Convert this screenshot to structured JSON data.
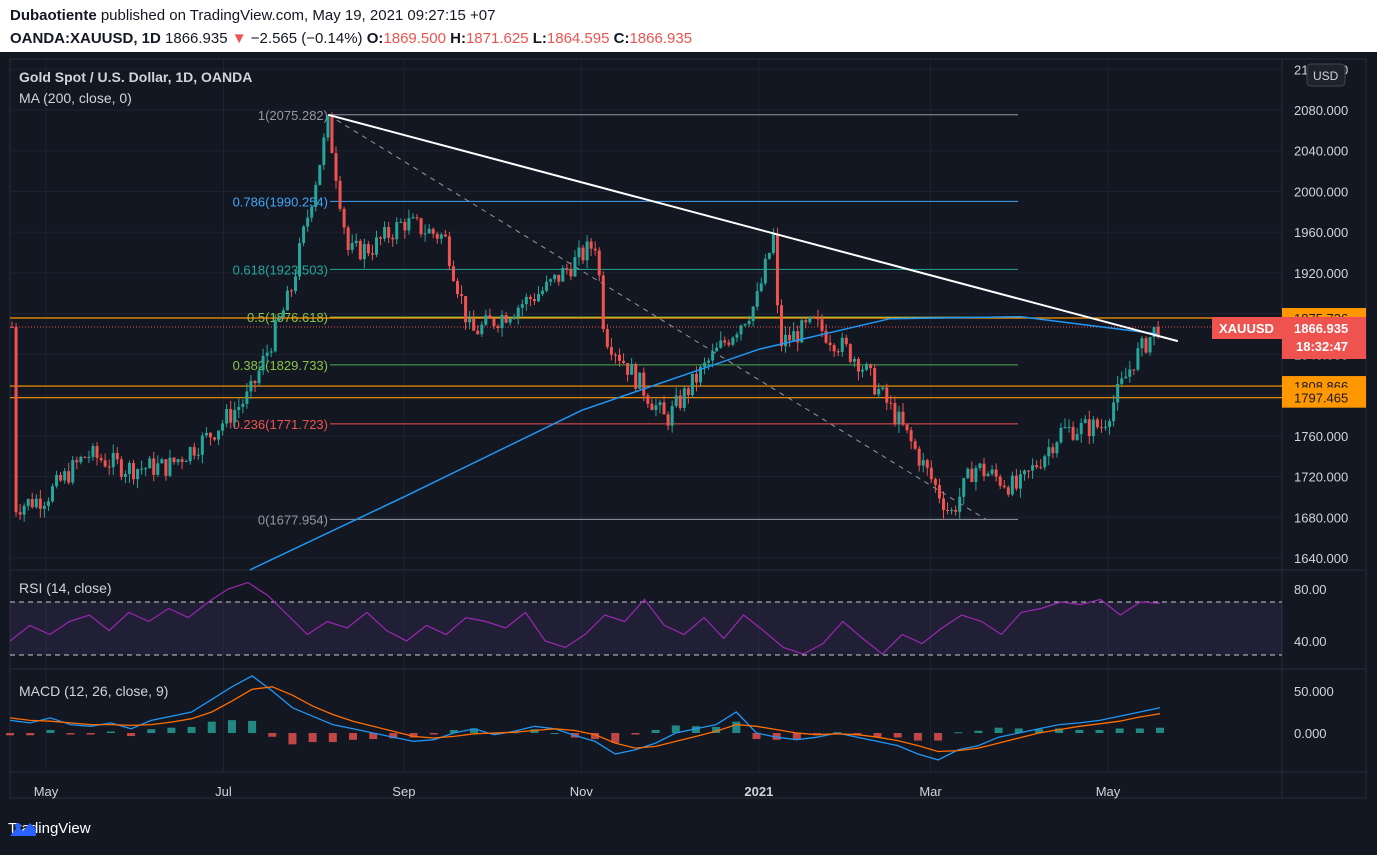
{
  "header": {
    "publisher": "Dubaotiente",
    "published_text": "published on TradingView.com, May 19, 2021 09:27:15 +07",
    "symbol": "OANDA:XAUUSD, 1D",
    "last": "1866.935",
    "change_arrow": "▼",
    "change": "−2.565 (−0.14%)",
    "o_label": "O:",
    "o": "1869.500",
    "h_label": "H:",
    "h": "1871.625",
    "l_label": "L:",
    "l": "1864.595",
    "c_label": "C:",
    "c": "1866.935"
  },
  "legend": {
    "title": "Gold Spot / U.S. Dollar, 1D, OANDA",
    "ma": "MA (200, close, 0)",
    "rsi": "RSI (14, close)",
    "macd": "MACD (12, 26, close, 9)"
  },
  "currency": "USD",
  "branding": "TradingView",
  "colors": {
    "background": "#131722",
    "up": "#26a69a",
    "down": "#ef5350",
    "ma": "#2196f3",
    "rsi": "#9c27b0",
    "macd_line": "#2196f3",
    "signal_line": "#ff6d00",
    "horizontal_levels": "#ff9800"
  },
  "chart_data": {
    "type": "candlestick",
    "price_axis_ticks": [
      "2120.000",
      "2080.000",
      "2040.000",
      "2000.000",
      "1960.000",
      "1920.000",
      "1880.000",
      "1840.000",
      "1800.000",
      "1760.000",
      "1720.000",
      "1680.000",
      "1640.000"
    ],
    "time_axis_ticks": [
      "May",
      "Jul",
      "Sep",
      "Nov",
      "2021",
      "Mar",
      "May"
    ],
    "y_range": [
      1620,
      2130
    ],
    "price_label": {
      "symbol": "XAUUSD",
      "value": "1866.935",
      "countdown": "18:32:47"
    },
    "horizontal_levels": [
      "1875.736",
      "1808.866",
      "1797.465"
    ],
    "fib_levels": [
      {
        "label": "1(2075.282)",
        "value": 2075.282
      },
      {
        "label": "0.786(1990.254)",
        "value": 1990.254
      },
      {
        "label": "0.618(1923.503)",
        "value": 1923.503
      },
      {
        "label": "0.5(1876.618)",
        "value": 1876.618
      },
      {
        "label": "0.382(1829.733)",
        "value": 1829.733
      },
      {
        "label": "0.236(1771.723)",
        "value": 1771.723
      },
      {
        "label": "0(1677.954)",
        "value": 1677.954
      }
    ],
    "close_path": [
      {
        "d": "2020-04-20",
        "c": 1690
      },
      {
        "d": "2020-05-01",
        "c": 1700
      },
      {
        "d": "2020-05-15",
        "c": 1742
      },
      {
        "d": "2020-05-29",
        "c": 1728
      },
      {
        "d": "2020-06-12",
        "c": 1730
      },
      {
        "d": "2020-06-26",
        "c": 1760
      },
      {
        "d": "2020-07-10",
        "c": 1800
      },
      {
        "d": "2020-07-24",
        "c": 1900
      },
      {
        "d": "2020-08-06",
        "c": 2067
      },
      {
        "d": "2020-08-13",
        "c": 1940
      },
      {
        "d": "2020-08-21",
        "c": 1945
      },
      {
        "d": "2020-09-01",
        "c": 1970
      },
      {
        "d": "2020-09-15",
        "c": 1955
      },
      {
        "d": "2020-09-24",
        "c": 1860
      },
      {
        "d": "2020-10-06",
        "c": 1880
      },
      {
        "d": "2020-10-20",
        "c": 1905
      },
      {
        "d": "2020-11-06",
        "c": 1950
      },
      {
        "d": "2020-11-09",
        "c": 1860
      },
      {
        "d": "2020-11-30",
        "c": 1775
      },
      {
        "d": "2020-12-14",
        "c": 1830
      },
      {
        "d": "2020-12-31",
        "c": 1890
      },
      {
        "d": "2021-01-06",
        "c": 1955
      },
      {
        "d": "2021-01-08",
        "c": 1850
      },
      {
        "d": "2021-01-20",
        "c": 1870
      },
      {
        "d": "2021-02-04",
        "c": 1835
      },
      {
        "d": "2021-02-18",
        "c": 1775
      },
      {
        "d": "2021-03-08",
        "c": 1683
      },
      {
        "d": "2021-03-16",
        "c": 1730
      },
      {
        "d": "2021-03-31",
        "c": 1708
      },
      {
        "d": "2021-04-15",
        "c": 1765
      },
      {
        "d": "2021-04-29",
        "c": 1770
      },
      {
        "d": "2021-05-10",
        "c": 1835
      },
      {
        "d": "2021-05-18",
        "c": 1867
      }
    ],
    "ma200_path": [
      {
        "d": "2020-07-10",
        "c": 1580
      },
      {
        "d": "2020-09-01",
        "c": 1700
      },
      {
        "d": "2020-11-01",
        "c": 1785
      },
      {
        "d": "2021-01-01",
        "c": 1845
      },
      {
        "d": "2021-02-15",
        "c": 1875
      },
      {
        "d": "2021-04-01",
        "c": 1877
      },
      {
        "d": "2021-05-18",
        "c": 1860
      }
    ],
    "trendline": [
      {
        "d": "2020-08-06",
        "v": 2075.282
      },
      {
        "d": "2021-05-25",
        "v": 1853
      }
    ],
    "rsi": {
      "levels": [
        70,
        30
      ],
      "axis_ticks": [
        "80.00",
        "40.00"
      ],
      "values": [
        40,
        52,
        45,
        55,
        60,
        48,
        62,
        55,
        65,
        58,
        70,
        80,
        85,
        75,
        60,
        45,
        55,
        50,
        62,
        48,
        40,
        52,
        45,
        58,
        55,
        50,
        62,
        40,
        35,
        45,
        60,
        55,
        72,
        52,
        45,
        58,
        42,
        60,
        48,
        35,
        30,
        38,
        55,
        42,
        30,
        45,
        38,
        50,
        60,
        55,
        45,
        62,
        65,
        70,
        68,
        72,
        60,
        70,
        69
      ]
    },
    "macd": {
      "axis_ticks": [
        "50.000",
        "0.000"
      ],
      "macd": [
        15,
        12,
        18,
        10,
        8,
        12,
        5,
        15,
        20,
        25,
        40,
        55,
        68,
        50,
        30,
        20,
        10,
        5,
        0,
        -5,
        -10,
        -8,
        0,
        5,
        -2,
        2,
        8,
        5,
        -3,
        -10,
        -25,
        -20,
        -12,
        0,
        5,
        10,
        25,
        0,
        -5,
        -8,
        -5,
        0,
        -5,
        -10,
        -15,
        -25,
        -32,
        -20,
        -15,
        -5,
        0,
        5,
        10,
        12,
        15,
        20,
        25,
        30
      ],
      "signal": [
        18,
        15,
        14,
        12,
        10,
        10,
        9,
        10,
        13,
        17,
        25,
        38,
        52,
        55,
        45,
        32,
        22,
        14,
        8,
        2,
        -4,
        -6,
        -4,
        -1,
        0,
        1,
        3,
        5,
        3,
        -2,
        -12,
        -18,
        -16,
        -10,
        -4,
        2,
        10,
        8,
        4,
        0,
        -2,
        -1,
        -2,
        -5,
        -9,
        -15,
        -22,
        -21,
        -18,
        -12,
        -6,
        0,
        4,
        8,
        11,
        14,
        19,
        23
      ]
    }
  }
}
